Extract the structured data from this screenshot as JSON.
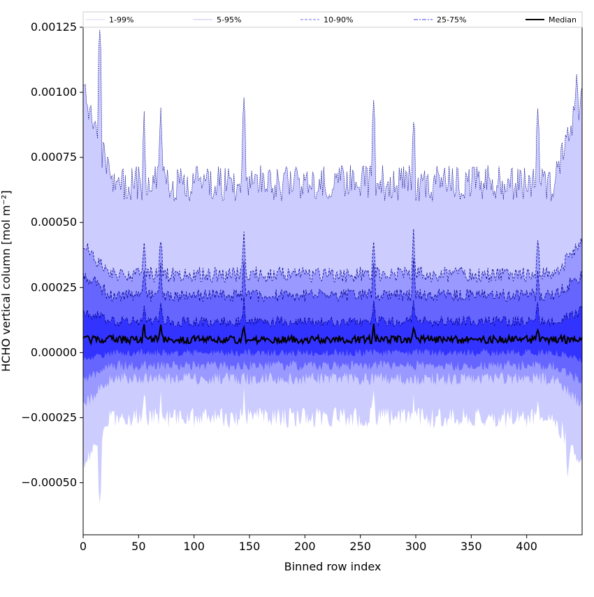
{
  "chart_data": {
    "type": "area",
    "xlabel": "Binned row index",
    "ylabel": "HCHO vertical column [mol m⁻²]",
    "xlim": [
      0,
      450
    ],
    "ylim": [
      -0.0007,
      0.00125
    ],
    "x_ticks": [
      0,
      50,
      100,
      150,
      200,
      250,
      300,
      350,
      400
    ],
    "y_ticks": [
      -0.0005,
      -0.00025,
      0.0,
      0.00025,
      0.0005,
      0.00075,
      0.001,
      0.00125
    ],
    "y_tick_labels": [
      "−0.00050",
      "−0.00025",
      "0.00000",
      "0.00025",
      "0.00050",
      "0.00075",
      "0.00100",
      "0.00125"
    ],
    "legend": {
      "placement": "top (above axes)",
      "entries": [
        {
          "label": "1-99%",
          "color": "#d8d8f2",
          "style": "solid-thin"
        },
        {
          "label": "5-95%",
          "color": "#8a8ae6",
          "style": "dotted"
        },
        {
          "label": "10-90%",
          "color": "#6f6ff0",
          "style": "dashed"
        },
        {
          "label": "25-75%",
          "color": "#3f3ff0",
          "style": "dashdot"
        },
        {
          "label": "Median",
          "color": "#000000",
          "style": "solid-thick"
        }
      ]
    },
    "colors": {
      "p1_99": "#ccccff",
      "p5_95": "#9999ff",
      "p10_90": "#6666ff",
      "p25_75": "#3333ff",
      "median": "#000000",
      "outline": "#00008b"
    },
    "x_count": 450,
    "envelope": {
      "median": 5e-05,
      "p25": 0.0,
      "p75": 0.00012,
      "p10": -5e-05,
      "p90": 0.00022,
      "p5": -0.0001,
      "p95": 0.0003,
      "p1": -0.00025,
      "p99": 0.00065
    },
    "annotations": {
      "upper_99_peaks": [
        [
          15,
          0.00124
        ],
        [
          145,
          0.00098
        ],
        [
          262,
          0.00097
        ],
        [
          298,
          0.00088
        ],
        [
          445,
          0.00107
        ]
      ],
      "lower_1_minima": [
        [
          15,
          -0.00058
        ],
        [
          437,
          -0.00048
        ]
      ],
      "spikes_at_x": [
        55,
        70,
        145,
        262,
        298,
        410
      ]
    }
  }
}
